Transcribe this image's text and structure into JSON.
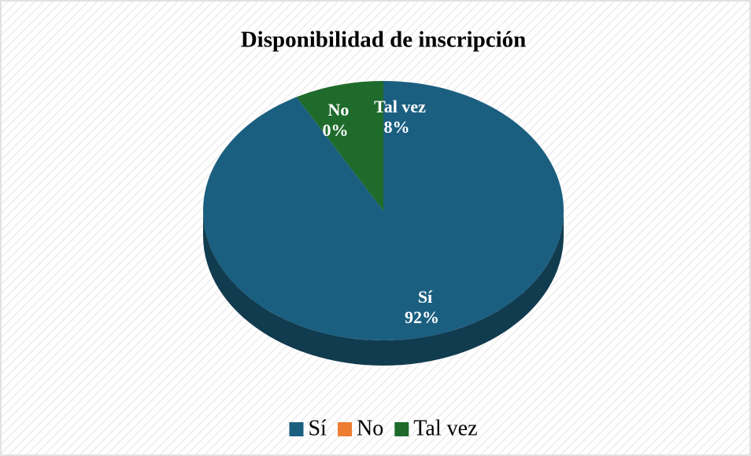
{
  "chart_data": {
    "type": "pie",
    "title": "Disponibilidad de inscripción",
    "categories": [
      "Sí",
      "No",
      "Tal vez"
    ],
    "values": [
      92,
      0,
      8
    ],
    "value_labels": [
      "92%",
      "0%",
      "8%"
    ],
    "colors": [
      "#1b5f80",
      "#ed7d31",
      "#1e6b2b"
    ],
    "legend": "bottom"
  }
}
